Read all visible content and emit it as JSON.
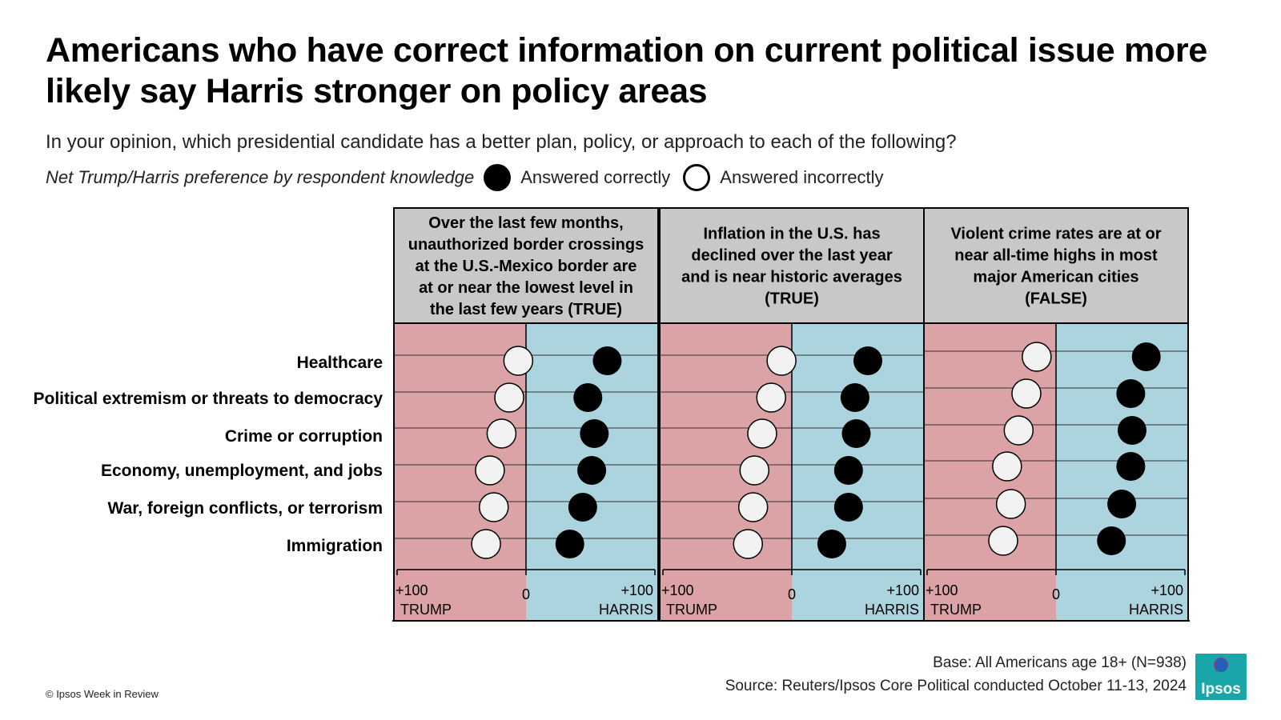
{
  "title": "Americans who have correct information on current political issue more likely say Harris stronger on policy areas",
  "subtitle": "In your opinion, which presidential candidate has a better plan, policy, or approach to each of the following?",
  "legend": {
    "lead": "Net Trump/Harris preference by respondent knowledge",
    "correct_label": "Answered correctly",
    "incorrect_label": "Answered incorrectly",
    "correct_icon": "filled-black-circle-icon",
    "incorrect_icon": "open-white-circle-icon"
  },
  "chart_data": {
    "type": "scatter",
    "categories": [
      "Healthcare",
      "Political extremism or threats to democracy",
      "Crime or corruption",
      "Economy, unemployment, and jobs",
      "War, foreign conflicts, or terrorism",
      "Immigration"
    ],
    "xlim": [
      -100,
      100
    ],
    "axis": {
      "left_value": "+100",
      "left_label": "TRUMP",
      "center_value": "0",
      "right_value": "+100",
      "right_label": "HARRIS"
    },
    "colors": {
      "trump_bg": "#dba3a6",
      "harris_bg": "#acd4df",
      "header_bg": "#c8c8c8",
      "correct": "#000000",
      "incorrect": "#f2f2f2"
    },
    "panels": [
      {
        "title": "Over the last few months, unauthorized border crossings at the U.S.-Mexico border are at or near the lowest level in the last few years (TRUE)",
        "series": [
          {
            "name": "Answered correctly",
            "values": [
              63,
              48,
              53,
              51,
              44,
              34
            ]
          },
          {
            "name": "Answered incorrectly",
            "values": [
              -6,
              -13,
              -19,
              -28,
              -25,
              -31
            ]
          }
        ]
      },
      {
        "title": "Inflation in the U.S. has declined over the last year and is near historic averages (TRUE)",
        "series": [
          {
            "name": "Answered correctly",
            "values": [
              59,
              49,
              50,
              44,
              44,
              31
            ]
          },
          {
            "name": "Answered incorrectly",
            "values": [
              -8,
              -16,
              -23,
              -29,
              -30,
              -34
            ]
          }
        ]
      },
      {
        "title": "Violent crime rates are at or near all-time highs in most major American cities (FALSE)",
        "series": [
          {
            "name": "Answered correctly",
            "values": [
              70,
              58,
              59,
              58,
              51,
              43
            ]
          },
          {
            "name": "Answered incorrectly",
            "values": [
              -15,
              -23,
              -29,
              -38,
              -35,
              -41
            ]
          }
        ]
      }
    ]
  },
  "base": "Base: All Americans age 18+ (N=938)",
  "source": "Source: Reuters/Ipsos Core Political conducted October 11-13, 2024",
  "copyright": "© Ipsos Week in Review",
  "logo": {
    "text": "Ipsos",
    "color": "#1aa6a8"
  }
}
